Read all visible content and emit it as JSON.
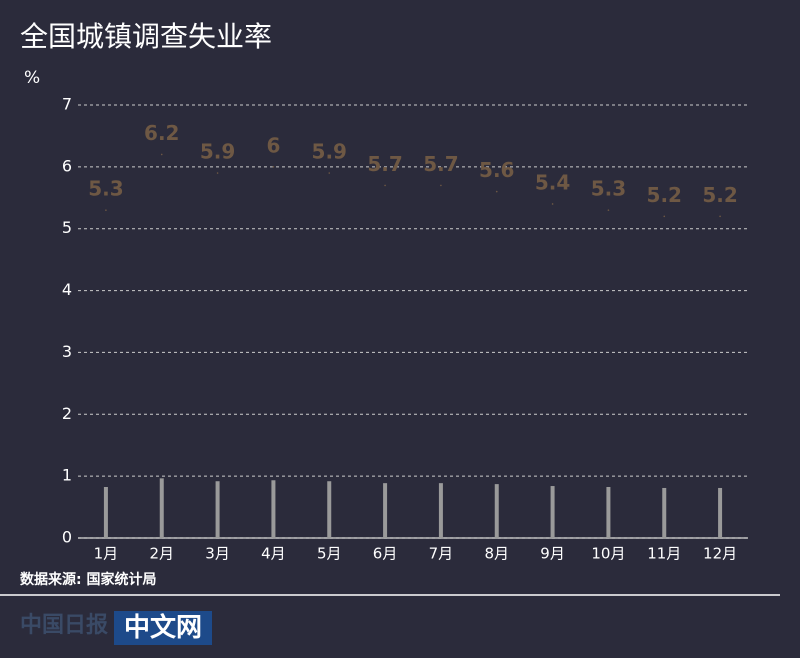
{
  "chart_data": {
    "type": "bar-dot",
    "title": "全国城镇调查失业率",
    "y_label": "%",
    "categories": [
      "1月",
      "2月",
      "3月",
      "4月",
      "5月",
      "6月",
      "7月",
      "8月",
      "9月",
      "10月",
      "11月",
      "12月"
    ],
    "series": [
      {
        "name": "全国城镇调查失业率",
        "color": "#9a9a9a",
        "label_color": "#6e5844",
        "values": [
          5.3,
          6.2,
          5.9,
          6,
          5.9,
          5.7,
          5.7,
          5.6,
          5.4,
          5.3,
          5.2,
          5.2
        ]
      }
    ],
    "ylim": [
      0,
      7
    ],
    "yticks": [
      0,
      1,
      2,
      3,
      4,
      5,
      6,
      7
    ],
    "y2lim": [
      0,
      45
    ],
    "grid": true,
    "source": "数据来源: 国家统计局",
    "logo": "中文网"
  }
}
